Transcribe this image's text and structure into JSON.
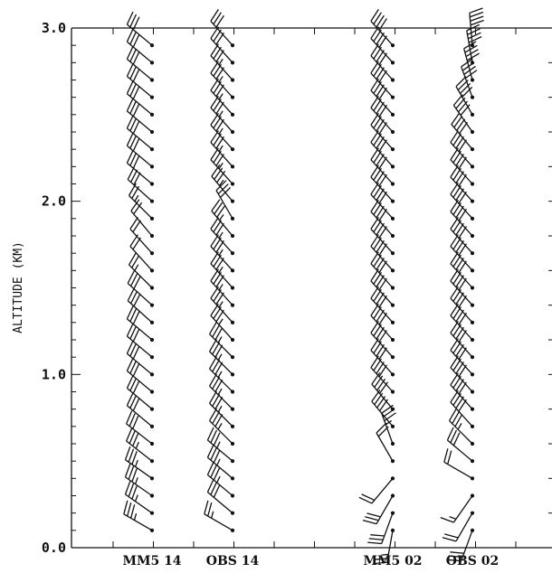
{
  "chart_data": {
    "type": "wind-barb-profile",
    "ylabel": "ALTITUDE (KM)",
    "ylim": [
      0,
      3.0
    ],
    "yticks": [
      "0.0",
      "1.0",
      "2.0",
      "3.0"
    ],
    "grid": false,
    "columns": [
      {
        "name": "MM5 14",
        "levels": [
          0.1,
          0.2,
          0.3,
          0.4,
          0.5,
          0.6,
          0.7,
          0.8,
          0.9,
          1.0,
          1.1,
          1.2,
          1.3,
          1.4,
          1.5,
          1.6,
          1.7,
          1.8,
          1.9,
          2.0,
          2.1,
          2.2,
          2.3,
          2.4,
          2.5,
          2.6,
          2.7,
          2.8,
          2.9
        ],
        "direction_deg": [
          300,
          305,
          305,
          305,
          308,
          308,
          310,
          310,
          310,
          310,
          310,
          310,
          312,
          312,
          315,
          318,
          318,
          320,
          315,
          312,
          310,
          310,
          310,
          310,
          310,
          310,
          310,
          310,
          310
        ],
        "speed_kt": [
          35,
          35,
          35,
          35,
          35,
          30,
          30,
          30,
          30,
          30,
          30,
          30,
          30,
          30,
          25,
          20,
          20,
          20,
          25,
          30,
          30,
          30,
          30,
          30,
          30,
          30,
          30,
          30,
          30
        ]
      },
      {
        "name": "OBS 14",
        "levels": [
          0.1,
          0.2,
          0.3,
          0.4,
          0.5,
          0.6,
          0.7,
          0.8,
          0.9,
          1.0,
          1.1,
          1.2,
          1.3,
          1.4,
          1.5,
          1.6,
          1.7,
          1.8,
          1.9,
          2.0,
          2.1,
          2.2,
          2.3,
          2.4,
          2.5,
          2.6,
          2.7,
          2.8,
          2.9
        ],
        "direction_deg": [
          300,
          310,
          310,
          310,
          310,
          315,
          315,
          315,
          315,
          315,
          315,
          318,
          318,
          318,
          318,
          318,
          318,
          320,
          330,
          320,
          318,
          318,
          318,
          318,
          318,
          318,
          318,
          318,
          318
        ],
        "speed_kt": [
          25,
          30,
          35,
          35,
          35,
          35,
          35,
          35,
          35,
          35,
          35,
          35,
          35,
          35,
          35,
          35,
          35,
          35,
          30,
          35,
          35,
          35,
          35,
          35,
          35,
          35,
          35,
          30,
          30
        ]
      },
      {
        "name": "MM5 02",
        "levels": [
          0.1,
          0.2,
          0.3,
          0.4,
          0.5,
          0.6,
          0.7,
          0.8,
          0.9,
          1.0,
          1.1,
          1.2,
          1.3,
          1.4,
          1.5,
          1.6,
          1.7,
          1.8,
          1.9,
          2.0,
          2.1,
          2.2,
          2.3,
          2.4,
          2.5,
          2.6,
          2.7,
          2.8,
          2.9
        ],
        "direction_deg": [
          190,
          200,
          210,
          220,
          330,
          340,
          320,
          320,
          318,
          318,
          318,
          318,
          318,
          318,
          318,
          318,
          318,
          318,
          318,
          318,
          318,
          318,
          318,
          318,
          318,
          318,
          318,
          318,
          318
        ],
        "speed_kt": [
          25,
          30,
          30,
          20,
          20,
          35,
          40,
          40,
          40,
          40,
          40,
          40,
          40,
          40,
          40,
          40,
          40,
          40,
          40,
          40,
          40,
          40,
          40,
          40,
          40,
          40,
          40,
          40,
          40
        ]
      },
      {
        "name": "OBS 02",
        "levels": [
          0.1,
          0.2,
          0.3,
          0.4,
          0.5,
          0.6,
          0.7,
          0.8,
          0.9,
          1.0,
          1.1,
          1.2,
          1.3,
          1.4,
          1.5,
          1.6,
          1.7,
          1.8,
          1.9,
          2.0,
          2.1,
          2.2,
          2.3,
          2.4,
          2.5,
          2.6,
          2.7,
          2.8,
          2.9
        ],
        "direction_deg": [
          200,
          210,
          215,
          300,
          310,
          315,
          318,
          318,
          318,
          318,
          318,
          318,
          318,
          318,
          318,
          318,
          318,
          318,
          318,
          318,
          318,
          318,
          320,
          325,
          330,
          340,
          345,
          350,
          355
        ],
        "speed_kt": [
          30,
          20,
          15,
          20,
          30,
          35,
          40,
          40,
          40,
          40,
          40,
          40,
          40,
          40,
          40,
          40,
          40,
          40,
          40,
          40,
          40,
          40,
          40,
          40,
          40,
          40,
          40,
          40,
          40
        ]
      }
    ]
  }
}
